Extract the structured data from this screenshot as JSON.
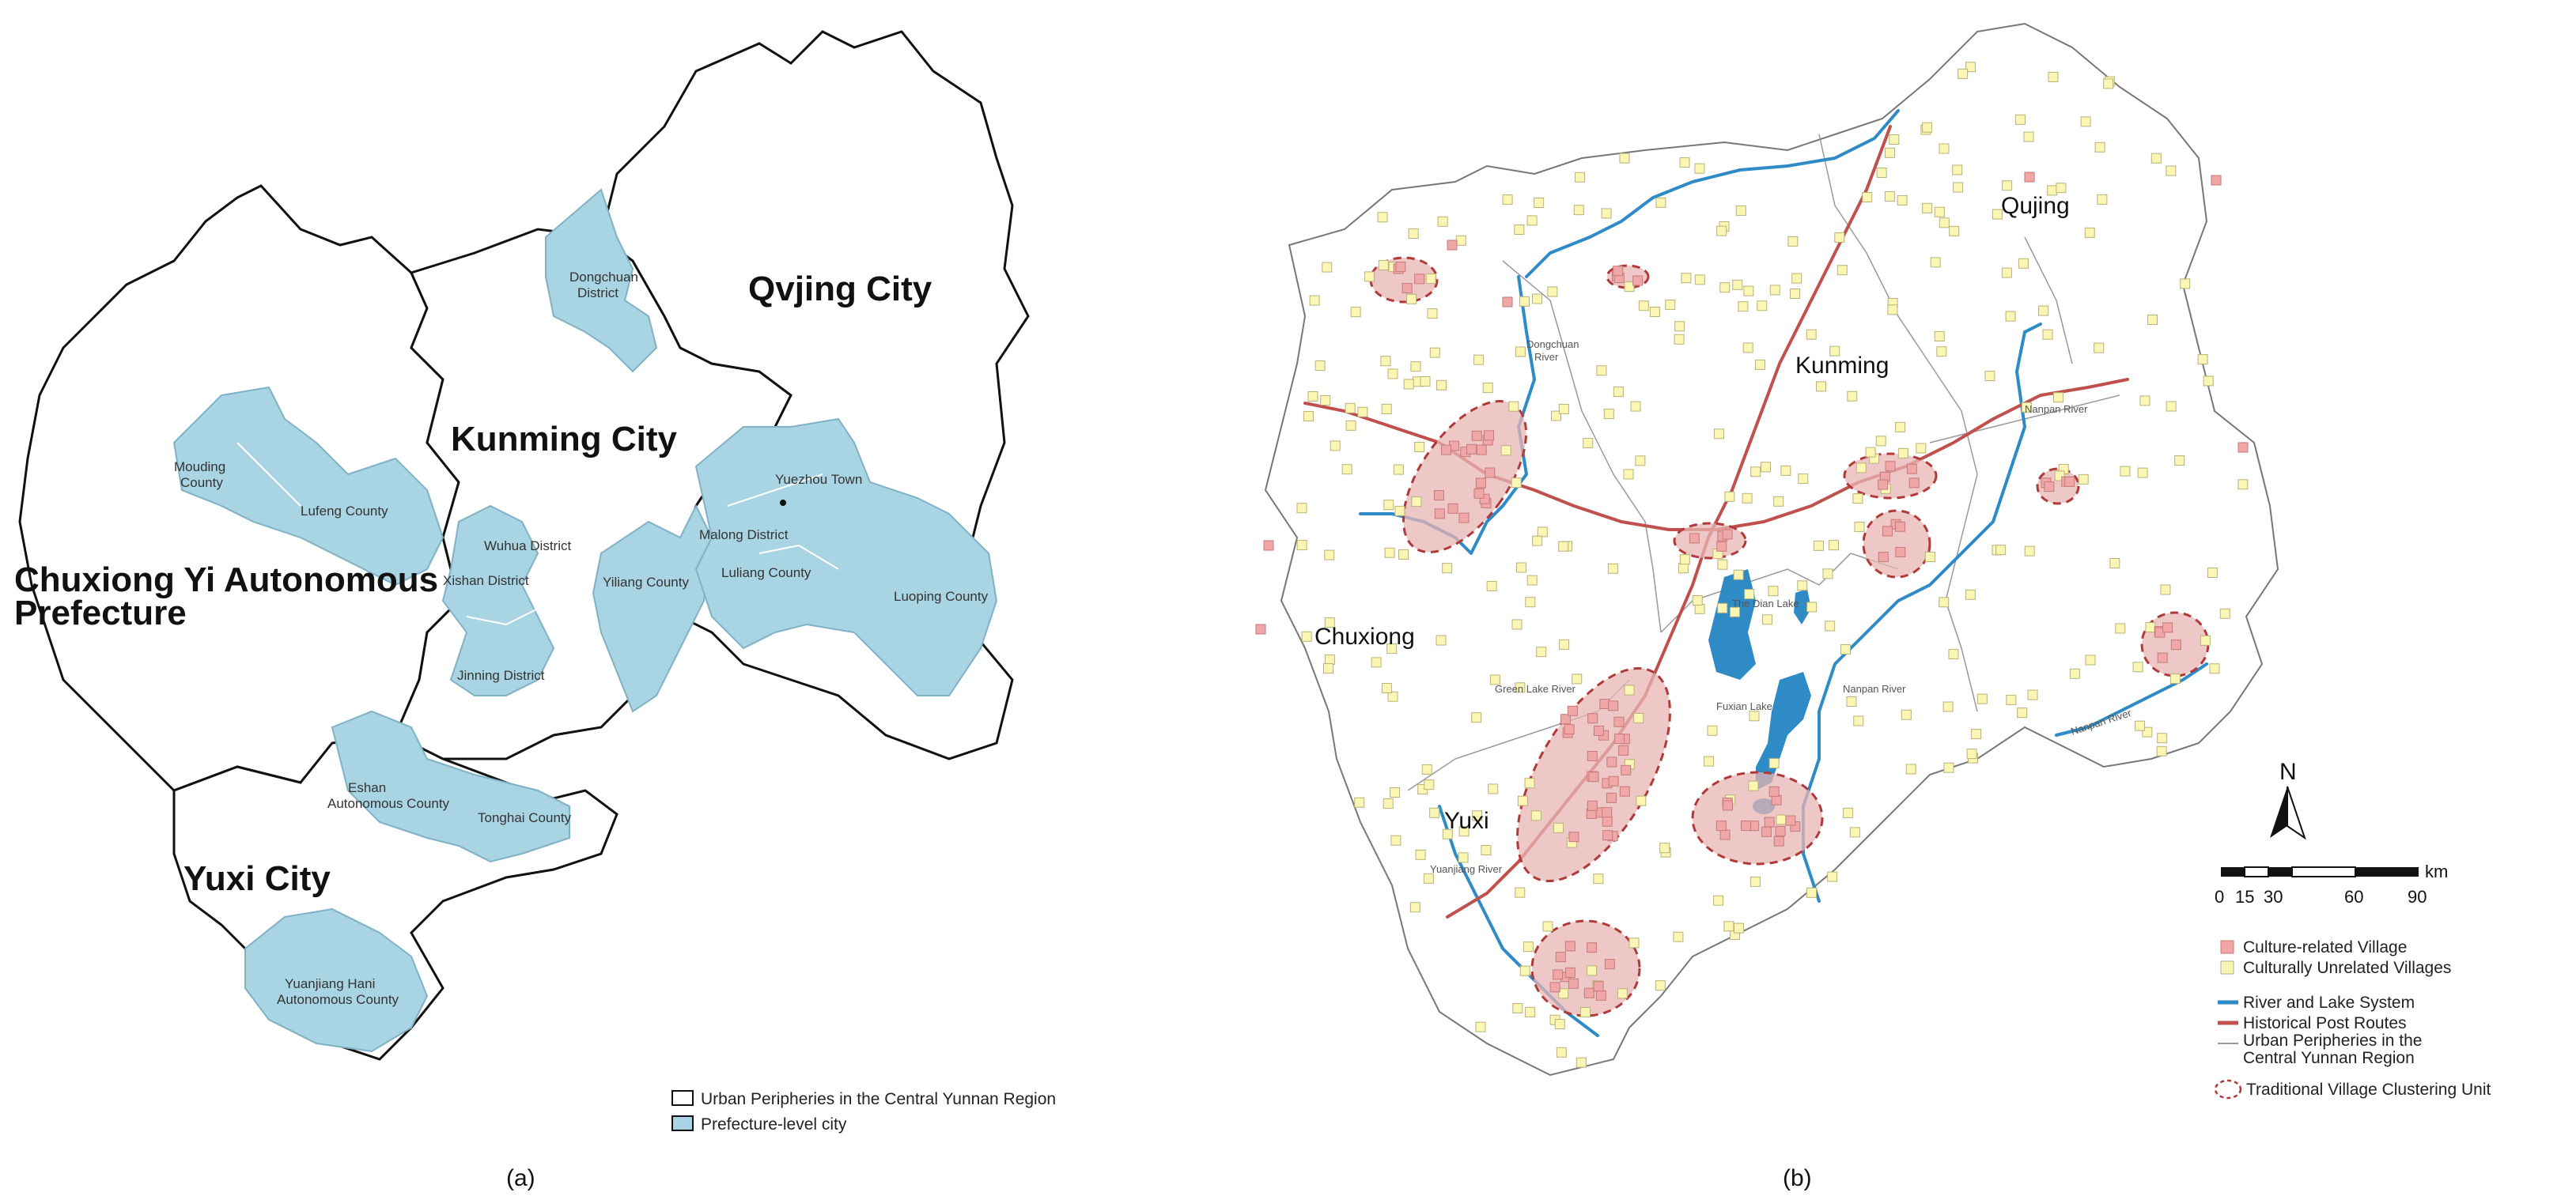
{
  "panel_a": {
    "caption": "(a)",
    "cities": {
      "qvjing": "Qvjing City",
      "kunming": "Kunming City",
      "chuxiong_line1": "Chuxiong Yi Autonomous",
      "chuxiong_line2": "Prefecture",
      "yuxi": "Yuxi City"
    },
    "districts": {
      "dongchuan_1": "Dongchuan",
      "dongchuan_2": "District",
      "mouding_1": "Mouding",
      "mouding_2": "County",
      "lufeng": "Lufeng County",
      "wuhua": "Wuhua District",
      "xishan": "Xishan District",
      "jinning": "Jinning District",
      "yiliang": "Yiliang County",
      "malong": "Malong District",
      "yuezhou": "Yuezhou Town",
      "luliang": "Luliang County",
      "luoping": "Luoping County",
      "eshan_1": "Eshan",
      "eshan_2": "Autonomous County",
      "tonghai": "Tonghai County",
      "yuanjiang_1": "Yuanjiang Hani",
      "yuanjiang_2": "Autonomous County"
    },
    "legend": {
      "periphery": "Urban Peripheries in the Central Yunnan Region",
      "prefecture": "Prefecture-level city"
    },
    "colors": {
      "fill": "#a9d4e3",
      "outline": "#111111"
    }
  },
  "panel_b": {
    "caption": "(b)",
    "regions": {
      "qujing": "Qujing",
      "kunming": "Kunming",
      "chuxiong": "Chuxiong",
      "yuxi": "Yuxi"
    },
    "rivers": {
      "dongchuan_1": "Dongchuan",
      "dongchuan_2": "River",
      "nanpan_upper": "Nanpan River",
      "nanpan_lower": "Nanpan River",
      "nanpan_east": "Nanpan River",
      "green_lake": "Green Lake River",
      "dian_lake": "The Dian Lake",
      "fuxian_lake": "Fuxian Lake",
      "yuanjiang": "Yuanjiang River"
    },
    "north": "N",
    "scale": {
      "unit": "km",
      "ticks": [
        "0",
        "15",
        "30",
        "60",
        "90"
      ]
    },
    "legend": {
      "culture_related": "Culture-related Village",
      "culturally_unrelated": "Culturally Unrelated Villages",
      "river_lake": "River and Lake System",
      "post_routes": "Historical Post Routes",
      "periphery_1": "Urban Peripheries in the",
      "periphery_2": "Central Yunnan Region",
      "cluster": "Traditional Village Clustering Unit"
    },
    "colors": {
      "river": "#2e8bc6",
      "route": "#c0504d",
      "cluster_fill": "#e8b4b4",
      "cluster_stroke": "#b03a3a",
      "culture_village": "#f0a7a7",
      "unrelated_village": "#fbf6b4",
      "boundary": "#777777"
    }
  }
}
